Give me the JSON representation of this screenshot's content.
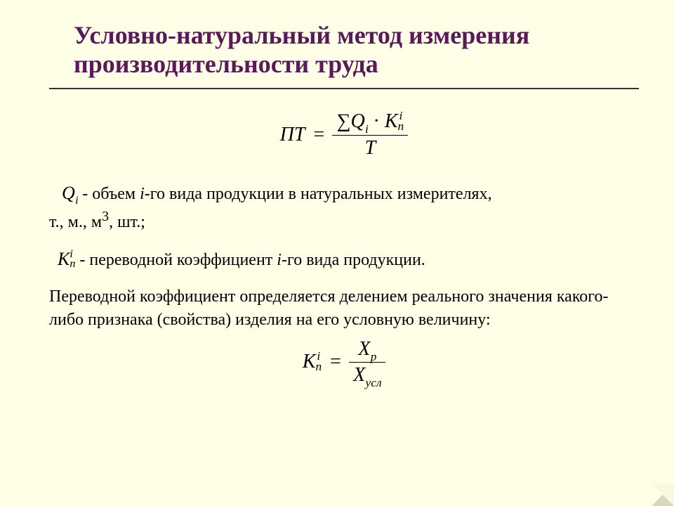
{
  "colors": {
    "background": "#ffffe8",
    "title": "#5a1a5a",
    "text": "#000000",
    "rule": "#333333"
  },
  "typography": {
    "title_font": "Times New Roman",
    "title_size_pt": 36,
    "title_weight": "bold",
    "body_font": "Times New Roman",
    "body_size_pt": 24,
    "formula_size_pt": 28,
    "formula_style": "italic"
  },
  "title": "Условно-натуральный метод измерения производительности труда",
  "formula1": {
    "lhs": "ПТ",
    "equals": "=",
    "numerator": {
      "sigma": "∑",
      "Q": "Q",
      "Q_sub": "i",
      "dot": "·",
      "K": "K",
      "K_sup": "i",
      "K_sub": "n"
    },
    "denominator": "T"
  },
  "defs": {
    "Qi": {
      "sym": "Q",
      "sub": "i",
      "text_before": " - объем ",
      "i_var": "i",
      "text_mid": "-го вида продукции в натуральных измерителях,",
      "text_units": "т., м., м",
      "cube_sup": "3",
      "text_after": ", шт.;"
    },
    "Kn": {
      "sym": "K",
      "sup": "i",
      "sub": "n",
      "text_before": " - переводной коэффициент ",
      "i_var": "i",
      "text_after": "-го вида продукции."
    }
  },
  "paragraph": "Переводной коэффициент определяется делением реального значения какого-либо признака (свойства) изделия на его условную величину:",
  "formula2": {
    "lhs": {
      "K": "K",
      "sup": "i",
      "sub": "n"
    },
    "equals": "=",
    "num": {
      "X": "X",
      "sub": "р"
    },
    "den": {
      "X": "X",
      "sub": "усл"
    }
  }
}
